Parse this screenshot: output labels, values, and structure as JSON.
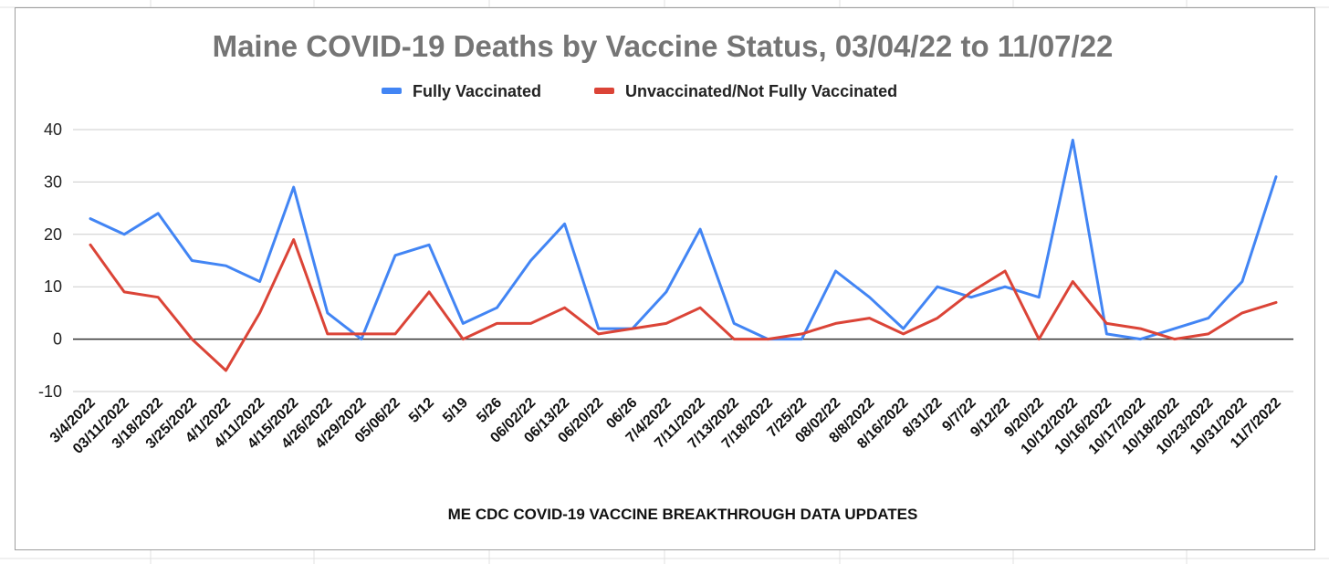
{
  "chart_data": {
    "type": "line",
    "title": "Maine COVID-19 Deaths by Vaccine Status, 03/04/22 to 11/07/22",
    "xlabel": "ME CDC COVID-19 VACCINE  BREAKTHROUGH DATA  UPDATES",
    "ylabel": "",
    "ylim": [
      -10,
      40
    ],
    "yticks": [
      "40",
      "30",
      "20",
      "10",
      "0",
      "-10"
    ],
    "grid": true,
    "legend_position": "top",
    "categories": [
      "3/4/2022",
      "03/11/2022",
      "3/18/2022",
      "3/25/2022",
      "4/1/2022",
      "4/11/2022",
      "4/15/2022",
      "4/26/2022",
      "4/29/2022",
      "05/06/22",
      "5/12",
      "5/19",
      "5/26",
      "06/02/22",
      "06/13/22",
      "06/20/22",
      "06/26",
      "7/4/2022",
      "7/11/2022",
      "7/13/2022",
      "7/18/2022",
      "7/25/22",
      "08/02/22",
      "8/8/2022",
      "8/16/2022",
      "8/31/22",
      "9/7/22",
      "9/12/22",
      "9/20/22",
      "10/12/2022",
      "10/16/2022",
      "10/17/2022",
      "10/18/2022",
      "10/23/2022",
      "10/31/2022",
      "11/7/2022"
    ],
    "series": [
      {
        "name": "Fully Vaccinated",
        "color": "#4285f4",
        "values": [
          23,
          20,
          24,
          15,
          14,
          11,
          29,
          5,
          0,
          16,
          18,
          3,
          6,
          15,
          22,
          2,
          2,
          9,
          21,
          3,
          0,
          0,
          13,
          8,
          2,
          10,
          8,
          10,
          8,
          38,
          1,
          0,
          2,
          4,
          11,
          31
        ]
      },
      {
        "name": "Unvaccinated/Not Fully Vaccinated",
        "color": "#db4437",
        "values": [
          18,
          9,
          8,
          0,
          -6,
          5,
          19,
          1,
          1,
          1,
          9,
          0,
          3,
          3,
          6,
          1,
          2,
          3,
          6,
          0,
          0,
          1,
          3,
          4,
          1,
          4,
          9,
          13,
          0,
          11,
          3,
          2,
          0,
          1,
          5,
          7
        ]
      }
    ]
  }
}
